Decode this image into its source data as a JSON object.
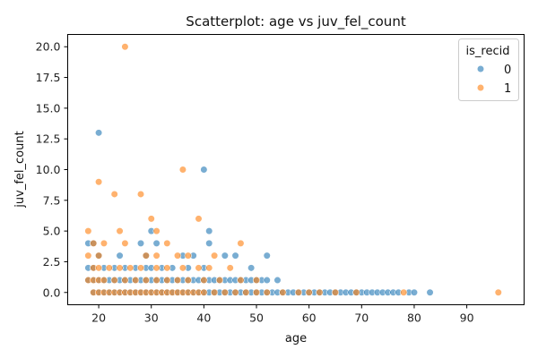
{
  "chart_data": {
    "type": "scatter",
    "title": "Scatterplot: age vs juv_fel_count",
    "xlabel": "age",
    "ylabel": "juv_fel_count",
    "xlim": [
      14.1,
      100.9
    ],
    "ylim": [
      -1.0,
      21.0
    ],
    "xticks": [
      20,
      30,
      40,
      50,
      60,
      70,
      80,
      90
    ],
    "xtick_labels": [
      "20",
      "30",
      "40",
      "50",
      "60",
      "70",
      "80",
      "90"
    ],
    "yticks": [
      0.0,
      2.5,
      5.0,
      7.5,
      10.0,
      12.5,
      15.0,
      17.5,
      20.0
    ],
    "ytick_labels": [
      "0.0",
      "2.5",
      "5.0",
      "7.5",
      "10.0",
      "12.5",
      "15.0",
      "17.5",
      "20.0"
    ],
    "grid": false,
    "legend": {
      "title": "is_recid",
      "location": "upper right",
      "entries": [
        {
          "label": "0",
          "color": "#1f77b4"
        },
        {
          "label": "1",
          "color": "#ff7f0e"
        }
      ]
    },
    "series": [
      {
        "name": "0",
        "color": "#1f77b4",
        "points": [
          [
            20,
            13
          ],
          [
            40,
            10
          ],
          [
            41,
            5
          ],
          [
            30,
            5
          ],
          [
            41,
            4
          ],
          [
            18,
            4
          ],
          [
            19,
            4
          ],
          [
            31,
            4
          ],
          [
            28,
            4
          ],
          [
            29,
            3
          ],
          [
            24,
            3
          ],
          [
            44,
            3
          ],
          [
            46,
            3
          ],
          [
            52,
            3
          ],
          [
            20,
            3
          ],
          [
            38,
            3
          ],
          [
            36,
            3
          ],
          [
            18,
            2
          ],
          [
            19,
            2
          ],
          [
            21,
            2
          ],
          [
            23,
            2
          ],
          [
            25,
            2
          ],
          [
            27,
            2
          ],
          [
            29,
            2
          ],
          [
            30,
            2
          ],
          [
            32,
            2
          ],
          [
            34,
            2
          ],
          [
            37,
            2
          ],
          [
            40,
            2
          ],
          [
            49,
            2
          ],
          [
            18,
            1
          ],
          [
            19,
            1
          ],
          [
            20,
            1
          ],
          [
            21,
            1
          ],
          [
            22,
            1
          ],
          [
            23,
            1
          ],
          [
            24,
            1
          ],
          [
            25,
            1
          ],
          [
            26,
            1
          ],
          [
            27,
            1
          ],
          [
            28,
            1
          ],
          [
            29,
            1
          ],
          [
            30,
            1
          ],
          [
            31,
            1
          ],
          [
            32,
            1
          ],
          [
            33,
            1
          ],
          [
            34,
            1
          ],
          [
            35,
            1
          ],
          [
            36,
            1
          ],
          [
            37,
            1
          ],
          [
            38,
            1
          ],
          [
            39,
            1
          ],
          [
            40,
            1
          ],
          [
            41,
            1
          ],
          [
            42,
            1
          ],
          [
            43,
            1
          ],
          [
            44,
            1
          ],
          [
            45,
            1
          ],
          [
            46,
            1
          ],
          [
            47,
            1
          ],
          [
            48,
            1
          ],
          [
            49,
            1
          ],
          [
            50,
            1
          ],
          [
            51,
            1
          ],
          [
            52,
            1
          ],
          [
            54,
            1
          ],
          [
            19,
            0
          ],
          [
            20,
            0
          ],
          [
            21,
            0
          ],
          [
            22,
            0
          ],
          [
            23,
            0
          ],
          [
            24,
            0
          ],
          [
            25,
            0
          ],
          [
            26,
            0
          ],
          [
            27,
            0
          ],
          [
            28,
            0
          ],
          [
            29,
            0
          ],
          [
            30,
            0
          ],
          [
            31,
            0
          ],
          [
            32,
            0
          ],
          [
            33,
            0
          ],
          [
            34,
            0
          ],
          [
            35,
            0
          ],
          [
            36,
            0
          ],
          [
            37,
            0
          ],
          [
            38,
            0
          ],
          [
            39,
            0
          ],
          [
            40,
            0
          ],
          [
            41,
            0
          ],
          [
            42,
            0
          ],
          [
            43,
            0
          ],
          [
            44,
            0
          ],
          [
            45,
            0
          ],
          [
            46,
            0
          ],
          [
            47,
            0
          ],
          [
            48,
            0
          ],
          [
            49,
            0
          ],
          [
            50,
            0
          ],
          [
            51,
            0
          ],
          [
            52,
            0
          ],
          [
            53,
            0
          ],
          [
            54,
            0
          ],
          [
            55,
            0
          ],
          [
            56,
            0
          ],
          [
            57,
            0
          ],
          [
            58,
            0
          ],
          [
            59,
            0
          ],
          [
            60,
            0
          ],
          [
            61,
            0
          ],
          [
            62,
            0
          ],
          [
            63,
            0
          ],
          [
            64,
            0
          ],
          [
            65,
            0
          ],
          [
            66,
            0
          ],
          [
            67,
            0
          ],
          [
            68,
            0
          ],
          [
            69,
            0
          ],
          [
            70,
            0
          ],
          [
            71,
            0
          ],
          [
            72,
            0
          ],
          [
            73,
            0
          ],
          [
            74,
            0
          ],
          [
            75,
            0
          ],
          [
            76,
            0
          ],
          [
            77,
            0
          ],
          [
            79,
            0
          ],
          [
            80,
            0
          ],
          [
            83,
            0
          ]
        ]
      },
      {
        "name": "1",
        "color": "#ff7f0e",
        "points": [
          [
            25,
            20
          ],
          [
            36,
            10
          ],
          [
            20,
            9
          ],
          [
            23,
            8
          ],
          [
            28,
            8
          ],
          [
            30,
            6
          ],
          [
            39,
            6
          ],
          [
            18,
            5
          ],
          [
            24,
            5
          ],
          [
            31,
            5
          ],
          [
            19,
            4
          ],
          [
            21,
            4
          ],
          [
            25,
            4
          ],
          [
            33,
            4
          ],
          [
            47,
            4
          ],
          [
            18,
            3
          ],
          [
            20,
            3
          ],
          [
            29,
            3
          ],
          [
            31,
            3
          ],
          [
            35,
            3
          ],
          [
            37,
            3
          ],
          [
            42,
            3
          ],
          [
            19,
            2
          ],
          [
            20,
            2
          ],
          [
            22,
            2
          ],
          [
            24,
            2
          ],
          [
            26,
            2
          ],
          [
            28,
            2
          ],
          [
            31,
            2
          ],
          [
            33,
            2
          ],
          [
            36,
            2
          ],
          [
            39,
            2
          ],
          [
            41,
            2
          ],
          [
            45,
            2
          ],
          [
            18,
            1
          ],
          [
            19,
            1
          ],
          [
            20,
            1
          ],
          [
            21,
            1
          ],
          [
            23,
            1
          ],
          [
            25,
            1
          ],
          [
            27,
            1
          ],
          [
            29,
            1
          ],
          [
            31,
            1
          ],
          [
            33,
            1
          ],
          [
            35,
            1
          ],
          [
            37,
            1
          ],
          [
            40,
            1
          ],
          [
            43,
            1
          ],
          [
            47,
            1
          ],
          [
            50,
            1
          ],
          [
            19,
            0
          ],
          [
            20,
            0
          ],
          [
            21,
            0
          ],
          [
            22,
            0
          ],
          [
            23,
            0
          ],
          [
            24,
            0
          ],
          [
            25,
            0
          ],
          [
            26,
            0
          ],
          [
            27,
            0
          ],
          [
            28,
            0
          ],
          [
            29,
            0
          ],
          [
            30,
            0
          ],
          [
            31,
            0
          ],
          [
            32,
            0
          ],
          [
            33,
            0
          ],
          [
            34,
            0
          ],
          [
            35,
            0
          ],
          [
            36,
            0
          ],
          [
            37,
            0
          ],
          [
            38,
            0
          ],
          [
            39,
            0
          ],
          [
            40,
            0
          ],
          [
            42,
            0
          ],
          [
            44,
            0
          ],
          [
            46,
            0
          ],
          [
            48,
            0
          ],
          [
            50,
            0
          ],
          [
            52,
            0
          ],
          [
            55,
            0
          ],
          [
            58,
            0
          ],
          [
            60,
            0
          ],
          [
            62,
            0
          ],
          [
            65,
            0
          ],
          [
            69,
            0
          ],
          [
            78,
            0
          ],
          [
            96,
            0
          ]
        ]
      }
    ]
  }
}
